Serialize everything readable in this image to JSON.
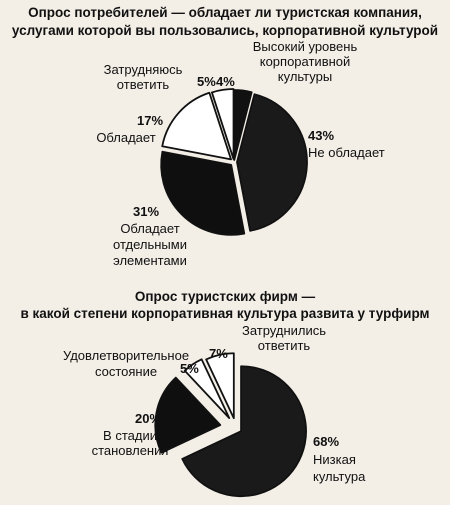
{
  "chart_data": [
    {
      "type": "pie",
      "title_lines": [
        "Опрос потребителей — обладает ли туристская компания,",
        "услугами которой вы пользовались, корпоративной культурой"
      ],
      "slices": [
        {
          "pct_label": "4%",
          "value": 4,
          "color": "#111111",
          "label_lines": [
            "Высокий уровень",
            "корпоративной",
            "культуры"
          ]
        },
        {
          "pct_label": "43%",
          "value": 43,
          "color": "#1a1a1a",
          "label_lines": [
            "Не обладает"
          ]
        },
        {
          "pct_label": "31%",
          "value": 31,
          "color": "#0f0f0f",
          "label_lines": [
            "Обладает",
            "отдельными",
            "элементами"
          ]
        },
        {
          "pct_label": "17%",
          "value": 17,
          "color": "#ffffff",
          "label_lines": [
            "Обладает"
          ]
        },
        {
          "pct_label": "5%",
          "value": 5,
          "color": "#ffffff",
          "label_lines": [
            "Затрудняюсь",
            "ответить"
          ]
        }
      ]
    },
    {
      "type": "pie",
      "title_lines": [
        "Опрос туристских фирм —",
        "в какой степени корпоративная культура развита у турфирм"
      ],
      "slices": [
        {
          "pct_label": "68%",
          "value": 68,
          "color": "#1a1a1a",
          "label_lines": [
            "Низкая",
            "культура"
          ]
        },
        {
          "pct_label": "20%",
          "value": 20,
          "color": "#0f0f0f",
          "label_lines": [
            "В стадии",
            "становления"
          ]
        },
        {
          "pct_label": "5%",
          "value": 5,
          "color": "#ffffff",
          "label_lines": [
            "Удовлетворительное",
            "состояние"
          ]
        },
        {
          "pct_label": "7%",
          "value": 7,
          "color": "#ffffff",
          "label_lines": [
            "Затруднились",
            "ответить"
          ]
        }
      ]
    }
  ]
}
